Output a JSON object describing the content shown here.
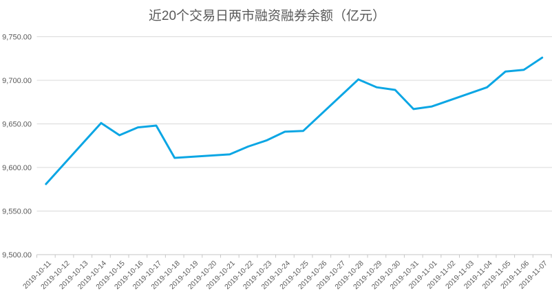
{
  "chart": {
    "colors": {
      "line": "#0ba6e4",
      "gridline": "#d9d9d9",
      "axis_line": "#c6c6c6",
      "title_text": "#595959",
      "tick_text": "#595959",
      "background": "#ffffff"
    }
  },
  "chart_data": {
    "type": "line",
    "title": "近20个交易日两市融资融券余额（亿元）",
    "xlabel": "",
    "ylabel": "",
    "ylim": [
      9500,
      9750
    ],
    "y_tick_interval": 50,
    "y_tick_labels": [
      "9,500.00",
      "9,550.00",
      "9,600.00",
      "9,650.00",
      "9,700.00",
      "9,750.00"
    ],
    "x_tick_labels": [
      "2019-10-11",
      "2019-10-12",
      "2019-10-13",
      "2019-10-14",
      "2019-10-15",
      "2019-10-16",
      "2019-10-17",
      "2019-10-18",
      "2019-10-19",
      "2019-10-20",
      "2019-10-21",
      "2019-10-22",
      "2019-10-23",
      "2019-10-24",
      "2019-10-25",
      "2019-10-26",
      "2019-10-27",
      "2019-10-28",
      "2019-10-29",
      "2019-10-30",
      "2019-10-31",
      "2019-11-01",
      "2019-11-02",
      "2019-11-03",
      "2019-11-04",
      "2019-11-05",
      "2019-11-06",
      "2019-11-07"
    ],
    "grid": true,
    "legend": "none",
    "series": [
      {
        "color": "#0ba6e4",
        "points": [
          {
            "date": "2019-10-11",
            "value": 9581
          },
          {
            "date": "2019-10-14",
            "value": 9651
          },
          {
            "date": "2019-10-15",
            "value": 9637
          },
          {
            "date": "2019-10-16",
            "value": 9646
          },
          {
            "date": "2019-10-17",
            "value": 9648
          },
          {
            "date": "2019-10-18",
            "value": 9611
          },
          {
            "date": "2019-10-21",
            "value": 9615
          },
          {
            "date": "2019-10-22",
            "value": 9624
          },
          {
            "date": "2019-10-23",
            "value": 9631
          },
          {
            "date": "2019-10-24",
            "value": 9641
          },
          {
            "date": "2019-10-25",
            "value": 9642
          },
          {
            "date": "2019-10-28",
            "value": 9701
          },
          {
            "date": "2019-10-29",
            "value": 9692
          },
          {
            "date": "2019-10-30",
            "value": 9689
          },
          {
            "date": "2019-10-31",
            "value": 9667
          },
          {
            "date": "2019-11-01",
            "value": 9670
          },
          {
            "date": "2019-11-04",
            "value": 9692
          },
          {
            "date": "2019-11-05",
            "value": 9710
          },
          {
            "date": "2019-11-06",
            "value": 9712
          },
          {
            "date": "2019-11-07",
            "value": 9726
          }
        ]
      }
    ]
  }
}
